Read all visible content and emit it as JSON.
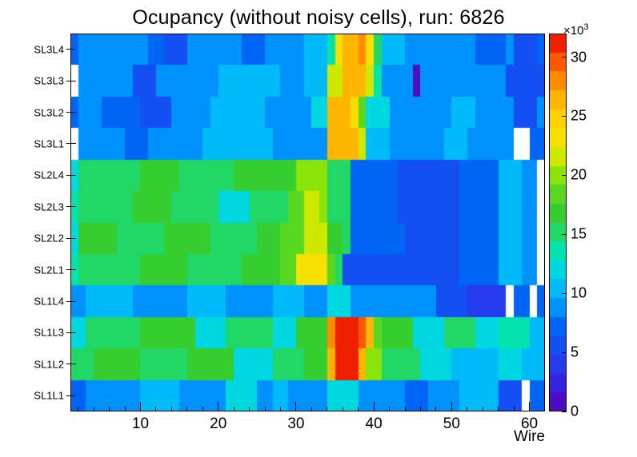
{
  "chart_data": {
    "type": "heatmap",
    "title": "Ocupancy (without noisy cells), run: 6826",
    "xlabel": "Wire",
    "x_range": [
      1,
      61
    ],
    "x_major_ticks": [
      10,
      20,
      30,
      40,
      50,
      60
    ],
    "x_minor_tick_step": 2,
    "z_range": [
      0,
      32000
    ],
    "z_ticks": [
      0,
      5,
      10,
      15,
      20,
      25,
      30
    ],
    "z_scale_base": "×10",
    "z_scale_exp": "3",
    "z_units_per_tick": 1000,
    "levels": 20,
    "legend_position": "right",
    "grid": false,
    "palette_stops": [
      [
        0.0,
        "#5c00b0"
      ],
      [
        0.06,
        "#3b1de0"
      ],
      [
        0.14,
        "#2142f0"
      ],
      [
        0.22,
        "#0060f4"
      ],
      [
        0.3,
        "#00a8ff"
      ],
      [
        0.36,
        "#00d4f0"
      ],
      [
        0.42,
        "#00e4b4"
      ],
      [
        0.47,
        "#1fd86c"
      ],
      [
        0.52,
        "#33cc33"
      ],
      [
        0.58,
        "#5cd91f"
      ],
      [
        0.64,
        "#9ae800"
      ],
      [
        0.7,
        "#f4e800"
      ],
      [
        0.78,
        "#ffcf00"
      ],
      [
        0.84,
        "#ffae00"
      ],
      [
        0.9,
        "#ff7300"
      ],
      [
        0.95,
        "#fb3b00"
      ],
      [
        1.0,
        "#e80000"
      ]
    ],
    "rows_top_to_bottom": [
      {
        "label": "SL3L4",
        "runs": [
          [
            1,
            1,
            6500
          ],
          [
            2,
            10,
            8500
          ],
          [
            11,
            12,
            7000
          ],
          [
            13,
            15,
            6200
          ],
          [
            16,
            22,
            8500
          ],
          [
            23,
            25,
            6800
          ],
          [
            26,
            30,
            8800
          ],
          [
            31,
            33,
            10800
          ],
          [
            34,
            34,
            13000
          ],
          [
            35,
            35,
            23000
          ],
          [
            36,
            37,
            26500
          ],
          [
            38,
            38,
            27500
          ],
          [
            39,
            39,
            23000
          ],
          [
            40,
            40,
            15500
          ],
          [
            41,
            43,
            10500
          ],
          [
            44,
            52,
            8600
          ],
          [
            53,
            56,
            7200
          ],
          [
            57,
            57,
            8600
          ],
          [
            58,
            60,
            5800
          ],
          [
            61,
            61,
            7500
          ]
        ]
      },
      {
        "label": "SL3L3",
        "runs": [
          [
            1,
            1,
            null
          ],
          [
            2,
            8,
            8600
          ],
          [
            9,
            11,
            6200
          ],
          [
            12,
            19,
            8800
          ],
          [
            20,
            27,
            9800
          ],
          [
            28,
            30,
            8800
          ],
          [
            31,
            33,
            11000
          ],
          [
            34,
            35,
            21000
          ],
          [
            36,
            38,
            26000
          ],
          [
            39,
            39,
            21000
          ],
          [
            40,
            40,
            14000
          ],
          [
            41,
            44,
            9000
          ],
          [
            45,
            45,
            1200
          ],
          [
            46,
            46,
            8000
          ],
          [
            47,
            56,
            8800
          ],
          [
            57,
            61,
            6200
          ]
        ]
      },
      {
        "label": "SL3L2",
        "runs": [
          [
            1,
            1,
            6500
          ],
          [
            2,
            4,
            8000
          ],
          [
            5,
            9,
            7000
          ],
          [
            10,
            13,
            6000
          ],
          [
            14,
            18,
            8800
          ],
          [
            19,
            25,
            10200
          ],
          [
            26,
            31,
            8800
          ],
          [
            32,
            33,
            11500
          ],
          [
            34,
            36,
            26000
          ],
          [
            37,
            37,
            23500
          ],
          [
            38,
            38,
            19000
          ],
          [
            39,
            41,
            11500
          ],
          [
            42,
            49,
            8800
          ],
          [
            50,
            52,
            10500
          ],
          [
            53,
            57,
            8500
          ],
          [
            58,
            60,
            6300
          ],
          [
            61,
            61,
            8000
          ]
        ]
      },
      {
        "label": "SL3L1",
        "runs": [
          [
            1,
            1,
            null
          ],
          [
            2,
            7,
            8800
          ],
          [
            8,
            10,
            6800
          ],
          [
            11,
            17,
            9000
          ],
          [
            18,
            26,
            10500
          ],
          [
            27,
            33,
            9000
          ],
          [
            34,
            36,
            27000
          ],
          [
            37,
            37,
            26000
          ],
          [
            38,
            38,
            22000
          ],
          [
            39,
            41,
            11000
          ],
          [
            42,
            48,
            8800
          ],
          [
            49,
            51,
            10000
          ],
          [
            52,
            56,
            8500
          ],
          [
            57,
            57,
            8800
          ],
          [
            58,
            59,
            null
          ],
          [
            60,
            61,
            6500
          ]
        ]
      },
      {
        "label": "SL2L4",
        "runs": [
          [
            1,
            1,
            12000
          ],
          [
            2,
            9,
            15500
          ],
          [
            10,
            14,
            16500
          ],
          [
            15,
            21,
            15000
          ],
          [
            22,
            27,
            16000
          ],
          [
            28,
            29,
            17500
          ],
          [
            30,
            33,
            19500
          ],
          [
            34,
            36,
            15500
          ],
          [
            37,
            42,
            7000
          ],
          [
            43,
            50,
            5200
          ],
          [
            51,
            55,
            6800
          ],
          [
            56,
            58,
            10000
          ],
          [
            59,
            60,
            8500
          ],
          [
            61,
            61,
            null
          ]
        ]
      },
      {
        "label": "SL2L3",
        "runs": [
          [
            1,
            1,
            13000
          ],
          [
            2,
            8,
            15500
          ],
          [
            9,
            13,
            16500
          ],
          [
            14,
            19,
            15000
          ],
          [
            20,
            23,
            12500
          ],
          [
            24,
            28,
            15500
          ],
          [
            29,
            30,
            18500
          ],
          [
            31,
            32,
            21500
          ],
          [
            33,
            33,
            19500
          ],
          [
            34,
            36,
            15000
          ],
          [
            37,
            42,
            6800
          ],
          [
            43,
            50,
            5400
          ],
          [
            51,
            55,
            7000
          ],
          [
            56,
            58,
            10500
          ],
          [
            59,
            60,
            9000
          ],
          [
            61,
            61,
            null
          ]
        ]
      },
      {
        "label": "SL2L2",
        "runs": [
          [
            1,
            1,
            12500
          ],
          [
            2,
            6,
            16500
          ],
          [
            7,
            12,
            15000
          ],
          [
            13,
            18,
            16500
          ],
          [
            19,
            24,
            15000
          ],
          [
            25,
            27,
            16000
          ],
          [
            28,
            30,
            18000
          ],
          [
            31,
            33,
            21000
          ],
          [
            34,
            35,
            16500
          ],
          [
            36,
            36,
            15000
          ],
          [
            37,
            43,
            6500
          ],
          [
            44,
            50,
            5200
          ],
          [
            51,
            55,
            6800
          ],
          [
            56,
            58,
            10500
          ],
          [
            59,
            60,
            8500
          ],
          [
            61,
            61,
            null
          ]
        ]
      },
      {
        "label": "SL2L1",
        "runs": [
          [
            1,
            1,
            14000
          ],
          [
            2,
            9,
            15500
          ],
          [
            10,
            15,
            16500
          ],
          [
            16,
            22,
            15000
          ],
          [
            23,
            27,
            16500
          ],
          [
            28,
            29,
            18500
          ],
          [
            30,
            33,
            22500
          ],
          [
            34,
            34,
            18000
          ],
          [
            35,
            35,
            15500
          ],
          [
            36,
            43,
            6200
          ],
          [
            44,
            50,
            5200
          ],
          [
            51,
            55,
            6500
          ],
          [
            56,
            58,
            10500
          ],
          [
            59,
            60,
            8000
          ],
          [
            61,
            61,
            null
          ]
        ]
      },
      {
        "label": "SL1L4",
        "runs": [
          [
            1,
            2,
            8800
          ],
          [
            3,
            8,
            11000
          ],
          [
            9,
            15,
            9000
          ],
          [
            16,
            20,
            10500
          ],
          [
            21,
            26,
            8800
          ],
          [
            27,
            30,
            10000
          ],
          [
            31,
            33,
            8800
          ],
          [
            34,
            36,
            12000
          ],
          [
            37,
            41,
            8800
          ],
          [
            42,
            47,
            8000
          ],
          [
            48,
            51,
            6000
          ],
          [
            52,
            56,
            4600
          ],
          [
            57,
            57,
            null
          ],
          [
            58,
            59,
            6500
          ],
          [
            60,
            60,
            null
          ],
          [
            61,
            61,
            6500
          ]
        ]
      },
      {
        "label": "SL1L3",
        "runs": [
          [
            1,
            2,
            12000
          ],
          [
            3,
            9,
            15500
          ],
          [
            10,
            16,
            16500
          ],
          [
            17,
            20,
            12500
          ],
          [
            21,
            26,
            15500
          ],
          [
            27,
            29,
            12500
          ],
          [
            30,
            33,
            16000
          ],
          [
            34,
            34,
            27500
          ],
          [
            35,
            37,
            30800
          ],
          [
            38,
            38,
            29000
          ],
          [
            39,
            39,
            26000
          ],
          [
            40,
            40,
            19000
          ],
          [
            41,
            44,
            16000
          ],
          [
            45,
            48,
            12000
          ],
          [
            49,
            52,
            14500
          ],
          [
            53,
            55,
            12000
          ],
          [
            56,
            59,
            13500
          ],
          [
            60,
            61,
            11000
          ]
        ]
      },
      {
        "label": "SL1L2",
        "runs": [
          [
            1,
            3,
            15000
          ],
          [
            4,
            9,
            17000
          ],
          [
            10,
            15,
            15500
          ],
          [
            16,
            21,
            16500
          ],
          [
            22,
            26,
            12500
          ],
          [
            27,
            30,
            15500
          ],
          [
            31,
            33,
            16500
          ],
          [
            34,
            34,
            27000
          ],
          [
            35,
            37,
            30500
          ],
          [
            38,
            38,
            26500
          ],
          [
            39,
            40,
            19500
          ],
          [
            41,
            45,
            15500
          ],
          [
            46,
            49,
            12500
          ],
          [
            50,
            55,
            11000
          ],
          [
            56,
            58,
            12000
          ],
          [
            59,
            61,
            10500
          ]
        ]
      },
      {
        "label": "SL1L1",
        "runs": [
          [
            1,
            2,
            7500
          ],
          [
            3,
            9,
            9000
          ],
          [
            10,
            14,
            10800
          ],
          [
            15,
            20,
            9200
          ],
          [
            21,
            24,
            11800
          ],
          [
            25,
            26,
            9000
          ],
          [
            27,
            28,
            11000
          ],
          [
            29,
            33,
            9000
          ],
          [
            34,
            37,
            12500
          ],
          [
            38,
            43,
            8800
          ],
          [
            44,
            46,
            6800
          ],
          [
            47,
            50,
            8800
          ],
          [
            51,
            55,
            10500
          ],
          [
            56,
            58,
            6000
          ],
          [
            59,
            59,
            null
          ],
          [
            60,
            61,
            6500
          ]
        ]
      }
    ]
  }
}
